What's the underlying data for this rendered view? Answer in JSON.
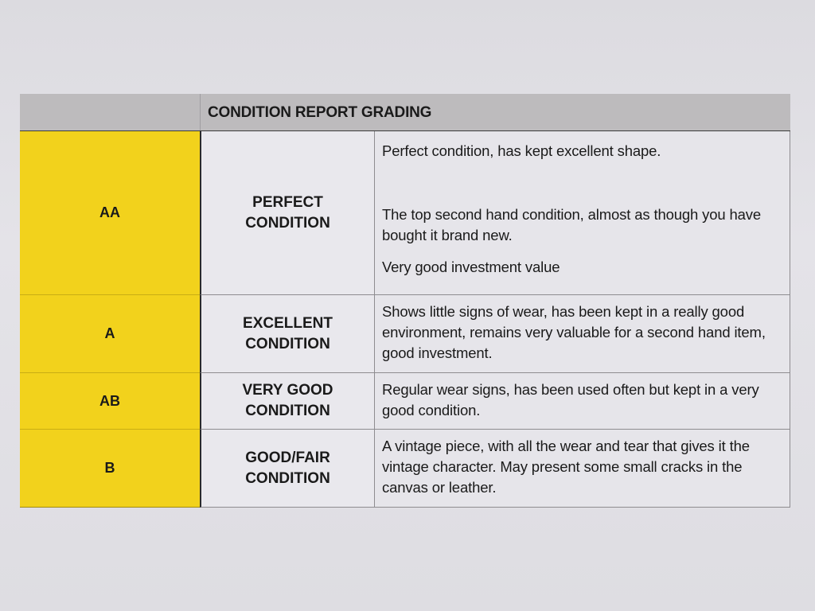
{
  "table": {
    "title": "CONDITION REPORT GRADING",
    "colors": {
      "grade_fill": "#f2d21c",
      "header_fill": "#bdbbbd"
    },
    "rows": [
      {
        "grade": "AA",
        "condition": "PERFECT CONDITION",
        "description": [
          "Perfect condition, has kept excellent shape.",
          "The top second hand condition, almost as though you have bought it brand new.",
          "Very good investment value"
        ]
      },
      {
        "grade": "A",
        "condition": "EXCELLENT CONDITION",
        "description": [
          "Shows little signs of wear, has been kept in a really good environment, remains very valuable for a second hand item, good investment."
        ]
      },
      {
        "grade": "AB",
        "condition": "VERY GOOD CONDITION",
        "description": [
          "Regular wear signs, has been used often but kept in a very good condition."
        ]
      },
      {
        "grade": "B",
        "condition": "GOOD/FAIR CONDITION",
        "description": [
          "A vintage piece, with all the wear and tear that gives it the vintage character. May present some small cracks in the canvas or leather."
        ]
      }
    ]
  }
}
